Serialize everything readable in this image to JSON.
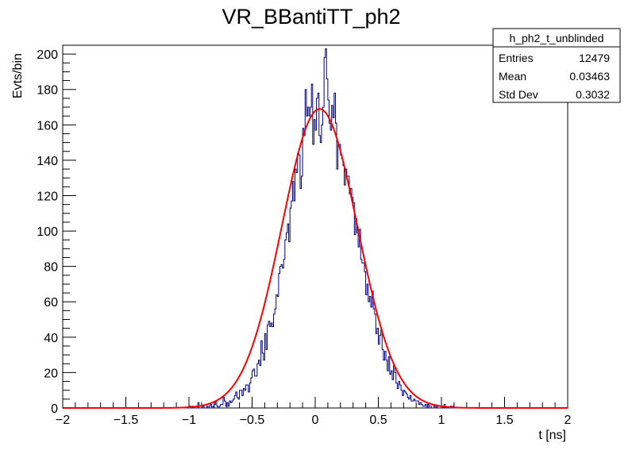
{
  "chart_data": {
    "type": "bar",
    "title": "VR_BBantiTT_ph2",
    "xlabel": "t [ns]",
    "ylabel": "Evts/bin",
    "xlim": [
      -2,
      2
    ],
    "ylim": [
      0,
      205
    ],
    "x_ticks": [
      -2,
      -1.5,
      -1,
      -0.5,
      0,
      0.5,
      1,
      1.5,
      2
    ],
    "x_tick_labels": [
      "−2",
      "−1.5",
      "−1",
      "−0.5",
      "0",
      "0.5",
      "1",
      "1.5",
      "2"
    ],
    "y_ticks": [
      0,
      20,
      40,
      60,
      80,
      100,
      120,
      140,
      160,
      180,
      200
    ],
    "y_tick_labels": [
      "0",
      "20",
      "40",
      "60",
      "80",
      "100",
      "120",
      "140",
      "160",
      "180",
      "200"
    ],
    "histogram": {
      "name": "h_ph2_t_unblinded",
      "color": "#000080",
      "style": "step",
      "bin_width": 0.01,
      "x_start": -1.0,
      "counts": [
        1,
        0,
        1,
        0,
        0,
        0,
        0,
        3,
        0,
        0,
        0,
        1,
        0,
        0,
        1,
        0,
        1,
        2,
        0,
        1,
        2,
        4,
        1,
        0,
        1,
        2,
        2,
        6,
        4,
        1,
        3,
        1,
        4,
        3,
        4,
        5,
        7,
        9,
        6,
        5,
        10,
        10,
        7,
        11,
        10,
        13,
        13,
        9,
        14,
        17,
        21,
        22,
        18,
        18,
        25,
        27,
        24,
        38,
        31,
        27,
        42,
        33,
        47,
        49,
        46,
        48,
        46,
        53,
        56,
        64,
        63,
        76,
        80,
        81,
        79,
        84,
        95,
        99,
        104,
        94,
        113,
        117,
        128,
        117,
        135,
        133,
        144,
        143,
        124,
        131,
        158,
        154,
        180,
        165,
        170,
        165,
        170,
        183,
        149,
        163,
        157,
        175,
        178,
        154,
        150,
        160,
        170,
        198,
        203,
        186,
        174,
        161,
        157,
        171,
        164,
        178,
        161,
        135,
        149,
        149,
        143,
        141,
        137,
        126,
        135,
        131,
        131,
        121,
        124,
        119,
        116,
        98,
        107,
        99,
        91,
        101,
        84,
        82,
        82,
        77,
        64,
        70,
        60,
        63,
        57,
        66,
        56,
        53,
        42,
        45,
        36,
        41,
        44,
        33,
        27,
        32,
        27,
        21,
        29,
        19,
        21,
        16,
        24,
        20,
        14,
        11,
        15,
        13,
        10,
        7,
        10,
        9,
        8,
        6,
        5,
        7,
        4,
        4,
        5,
        4,
        4,
        4,
        2,
        3,
        2,
        1,
        1,
        2,
        0,
        2,
        1,
        1,
        0,
        0,
        1,
        0,
        1,
        0,
        0,
        0,
        1,
        0,
        2,
        0,
        0,
        0,
        0,
        1,
        0,
        1
      ]
    },
    "fit": {
      "color": "#ff0000",
      "amplitude": 169,
      "mean": 0.035,
      "sigma": 0.3
    },
    "stats_box": {
      "title": "h_ph2_t_unblinded",
      "rows": [
        {
          "label": "Entries",
          "value": "12479"
        },
        {
          "label": "Mean",
          "value": "0.03463"
        },
        {
          "label": "Std Dev",
          "value": "0.3032"
        }
      ]
    }
  }
}
